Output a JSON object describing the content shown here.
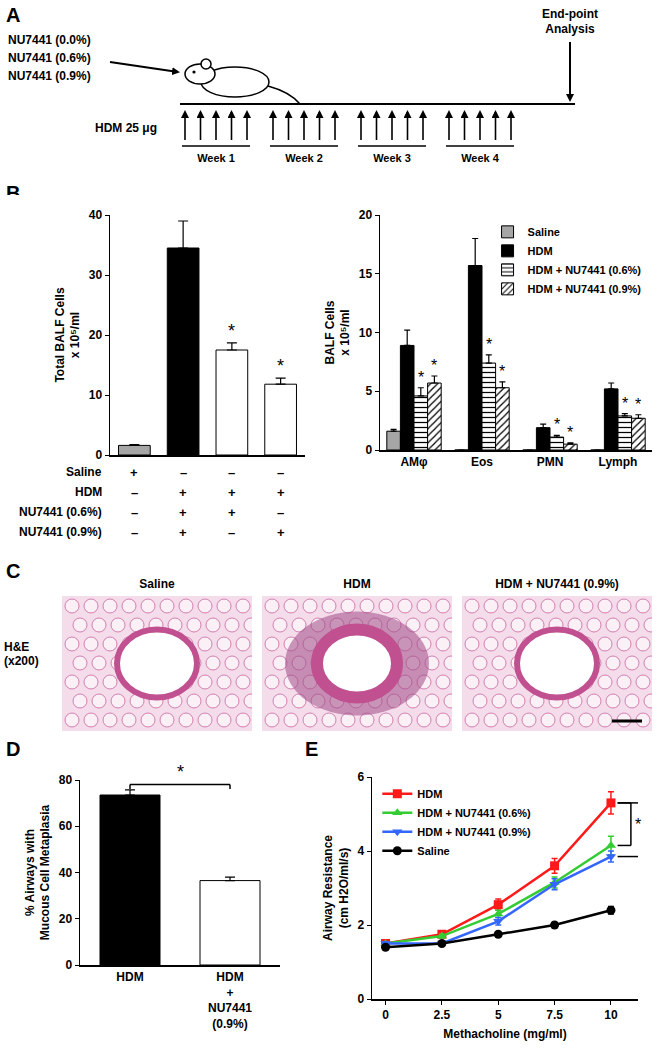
{
  "panels": {
    "A": {
      "label": "A",
      "treatments": [
        "NU7441 (0.0%)",
        "NU7441 (0.6%)",
        "NU7441 (0.9%)"
      ],
      "dose": "HDM 25 μg",
      "doses_per_week": 5,
      "weeks": [
        "Week 1",
        "Week 2",
        "Week 3",
        "Week 4"
      ],
      "endpoint": "End-point\nAnalysis"
    },
    "C": {
      "label": "C",
      "stain": "H&E\n(x200)",
      "images": [
        "Saline",
        "HDM",
        "HDM + NU7441 (0.9%)"
      ]
    }
  },
  "chart_data": [
    {
      "panel": "B",
      "type": "bar",
      "y_label": "Total BALF Cells\nx 10⁵/ml",
      "categories": [
        null,
        null,
        null,
        null
      ],
      "values": [
        1.6,
        34.5,
        17.5,
        11.8
      ],
      "errors": [
        0.15,
        4.5,
        1.2,
        1.0
      ],
      "colors": [
        "#a6a6a6",
        "#000000",
        "#ffffff",
        "#ffffff"
      ],
      "ylim": [
        0,
        40
      ],
      "yticks": [
        0,
        10,
        20,
        30,
        40
      ],
      "tick_labels": "y",
      "grid": false,
      "annotations": [
        {
          "x": 2,
          "text": "*"
        },
        {
          "x": 3,
          "text": "*"
        }
      ],
      "table": {
        "rows": [
          {
            "label": "Saline",
            "marks": [
              "+",
              "–",
              "–",
              "–"
            ]
          },
          {
            "label": "HDM",
            "marks": [
              "–",
              "+",
              "+",
              "+"
            ]
          },
          {
            "label": "NU7441 (0.6%)",
            "marks": [
              "–",
              "+",
              "+",
              "–"
            ]
          },
          {
            "label": "NU7441 (0.9%)",
            "marks": [
              "–",
              "+",
              "–",
              "+"
            ]
          }
        ]
      }
    },
    {
      "type": "bar",
      "y_label": "BALF Cells\nx 10⁵/ml",
      "categories": [
        "AMφ",
        "Eos",
        "PMN",
        "Lymph"
      ],
      "series": [
        {
          "name": "Saline",
          "color": "#a6a6a6",
          "marker": "solid",
          "values": [
            1.6,
            0,
            0,
            0
          ],
          "errors": [
            0.15,
            0,
            0,
            0
          ]
        },
        {
          "name": "HDM",
          "color": "#000000",
          "marker": "solid",
          "values": [
            8.9,
            15.7,
            1.9,
            5.2
          ],
          "errors": [
            1.3,
            2.3,
            0.3,
            0.5
          ]
        },
        {
          "name": "HDM + NU7441 (0.6%)",
          "color": "#ffffff",
          "marker": "horizontal-lines",
          "values": [
            4.6,
            7.4,
            1.1,
            2.9
          ],
          "errors": [
            0.7,
            0.7,
            0.15,
            0.2
          ]
        },
        {
          "name": "HDM + NU7441 (0.9%)",
          "color": "#ffffff",
          "marker": "diagonal-lines",
          "values": [
            5.7,
            5.3,
            0.5,
            2.7
          ],
          "errors": [
            0.6,
            0.5,
            0.1,
            0.3
          ]
        }
      ],
      "ylim": [
        0,
        20
      ],
      "yticks": [
        0,
        5,
        10,
        15,
        20
      ],
      "legend": "top-right",
      "grid": false,
      "annotations": [
        {
          "category": "AMφ",
          "series": "HDM + NU7441 (0.6%)",
          "text": "*"
        },
        {
          "category": "AMφ",
          "series": "HDM + NU7441 (0.9%)",
          "text": "*"
        },
        {
          "category": "Eos",
          "series": "HDM + NU7441 (0.6%)",
          "text": "*"
        },
        {
          "category": "Eos",
          "series": "HDM + NU7441 (0.9%)",
          "text": "*"
        },
        {
          "category": "PMN",
          "series": "HDM + NU7441 (0.6%)",
          "text": "*"
        },
        {
          "category": "PMN",
          "series": "HDM + NU7441 (0.9%)",
          "text": "*"
        },
        {
          "category": "Lymph",
          "series": "HDM + NU7441 (0.6%)",
          "text": "*"
        },
        {
          "category": "Lymph",
          "series": "HDM + NU7441 (0.9%)",
          "text": "*"
        }
      ]
    },
    {
      "panel": "D",
      "type": "bar",
      "y_label": "% Airways with\nMucous Cell Metaplasia",
      "categories": [
        "HDM",
        "HDM\n+\nNU7441\n(0.9%)"
      ],
      "values": [
        73.5,
        36.5
      ],
      "errors": [
        2.2,
        1.5
      ],
      "colors": [
        "#000000",
        "#ffffff"
      ],
      "ylim": [
        0,
        80
      ],
      "yticks": [
        0,
        20,
        40,
        60,
        80
      ],
      "grid": false,
      "annotations": [
        {
          "between": [
            0,
            1
          ],
          "text": "*"
        }
      ]
    },
    {
      "panel": "E",
      "type": "line",
      "x_label": "Methacholine (mg/ml)",
      "y_label": "Airway Resistance\n(cm H2O/ml/s)",
      "x": [
        0,
        2.5,
        5,
        7.5,
        10
      ],
      "series": [
        {
          "name": "HDM",
          "color": "#ff1a1a",
          "marker": "square",
          "values": [
            1.5,
            1.75,
            2.55,
            3.6,
            5.3
          ],
          "errors": [
            0.05,
            0.08,
            0.15,
            0.2,
            0.3
          ]
        },
        {
          "name": "HDM + NU7441 (0.6%)",
          "color": "#33cc33",
          "marker": "triangle-up",
          "values": [
            1.5,
            1.7,
            2.3,
            3.15,
            4.15
          ],
          "errors": [
            0.05,
            0.05,
            0.1,
            0.15,
            0.25
          ]
        },
        {
          "name": "HDM + NU7441 (0.9%)",
          "color": "#3366ff",
          "marker": "triangle-down",
          "values": [
            1.5,
            1.5,
            2.1,
            3.1,
            3.85
          ],
          "errors": [
            0.05,
            0.05,
            0.1,
            0.15,
            0.15
          ]
        },
        {
          "name": "Saline",
          "color": "#000000",
          "marker": "circle",
          "values": [
            1.4,
            1.5,
            1.75,
            2.0,
            2.4
          ],
          "errors": [
            0.03,
            0.03,
            0.05,
            0.05,
            0.1
          ]
        }
      ],
      "xlim": [
        -0.6,
        11.2
      ],
      "xticks": [
        0,
        2.5,
        5,
        7.5,
        10
      ],
      "ylim": [
        0,
        6
      ],
      "yticks": [
        0,
        2,
        4,
        6
      ],
      "legend": "top-left",
      "grid": false,
      "annotations": [
        {
          "between": [
            "HDM",
            "HDM + NU7441 (0.6%)"
          ],
          "text": "*"
        },
        {
          "between": [
            "HDM",
            "HDM + NU7441 (0.9%)"
          ],
          "text": "*"
        }
      ]
    }
  ]
}
